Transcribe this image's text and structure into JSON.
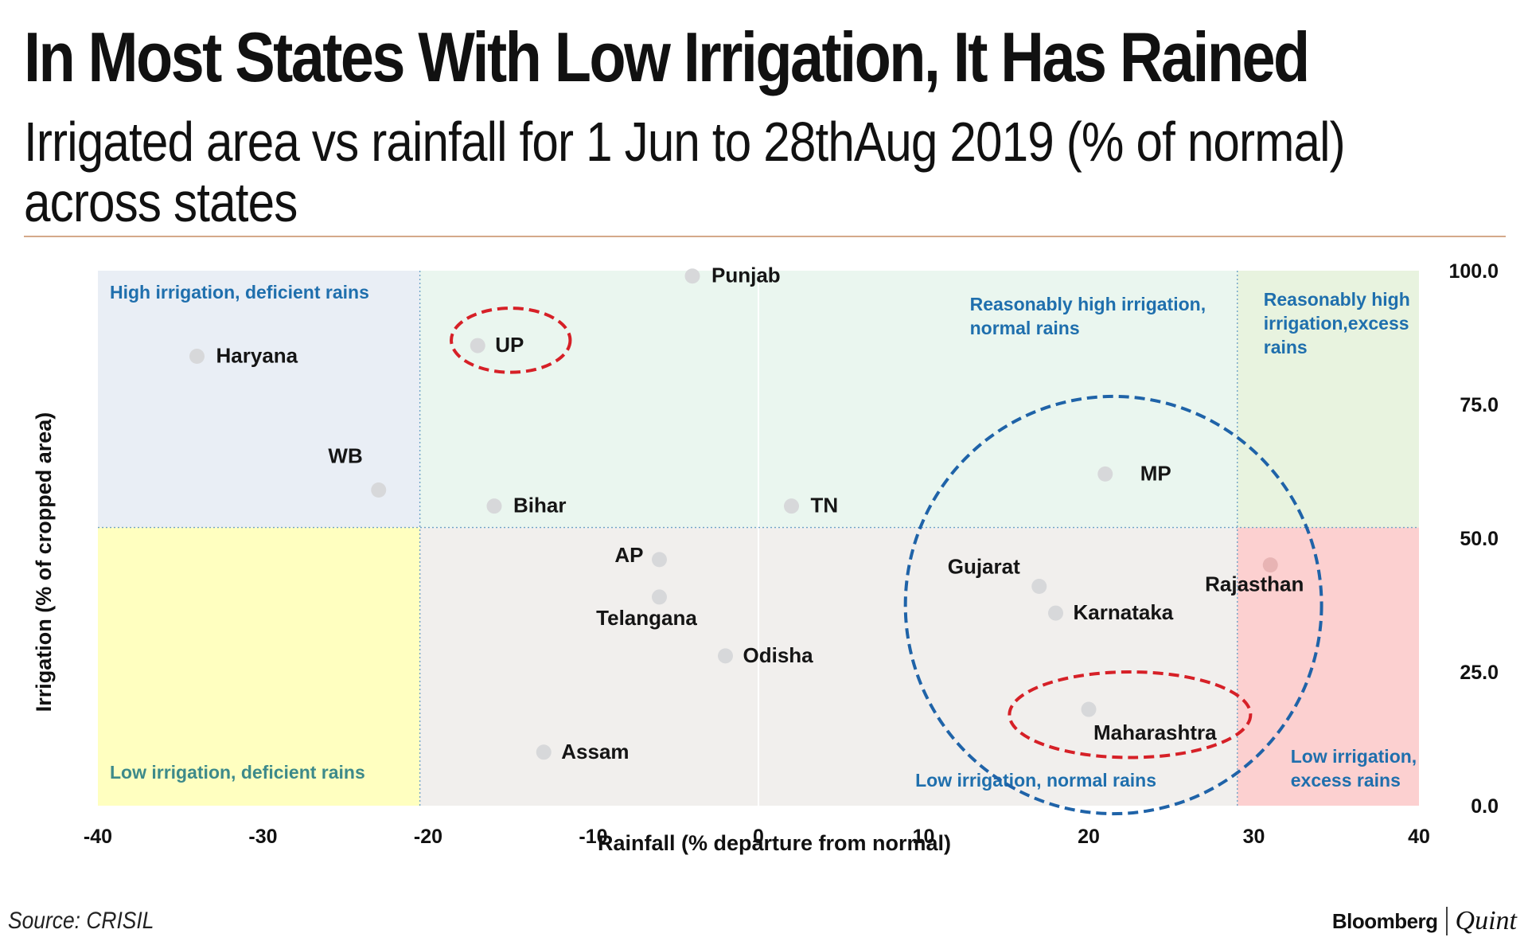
{
  "title": "In Most States With Low Irrigation, It Has Rained",
  "subtitle": "Irrigated area vs rainfall for 1 Jun to 28thAug 2019 (% of normal) across states",
  "source": "Source: CRISIL",
  "logo": {
    "primary": "Bloomberg",
    "secondary": "Quint"
  },
  "colors": {
    "high_irr_deficient": "#e9eef5",
    "high_irr_normal": "#eaf6ef",
    "high_irr_excess": "#e8f3df",
    "low_irr_deficient": "#ffffc0",
    "low_irr_normal": "#f1efed",
    "low_irr_excess": "#fcd0d0",
    "point": "#d7d8da",
    "quadrant_label": "#1f6fad",
    "quadrant_label_alt": "#3d8a8a",
    "highlight_red": "#d62027",
    "highlight_blue": "#1f63a8"
  },
  "chart_data": {
    "type": "scatter",
    "xlabel": "Rainfall (% departure from normal)",
    "ylabel": "Irrigation (% of cropped area)",
    "xlim": [
      -40,
      40
    ],
    "ylim": [
      0,
      100
    ],
    "xticks": [
      "-40",
      "-30",
      "-20",
      "-10",
      "0",
      "10",
      "20",
      "30",
      "40"
    ],
    "yticks": [
      "0.0",
      "25.0",
      "50.0",
      "75.0",
      "100.0"
    ],
    "thresholds": {
      "x_low": -20.5,
      "x_high": 29,
      "y": 52
    },
    "points": [
      {
        "label": "Punjab",
        "x": -4,
        "y": 99
      },
      {
        "label": "UP",
        "x": -17,
        "y": 86
      },
      {
        "label": "Haryana",
        "x": -34,
        "y": 84
      },
      {
        "label": "WB",
        "x": -23,
        "y": 59
      },
      {
        "label": "Bihar",
        "x": -16,
        "y": 56
      },
      {
        "label": "TN",
        "x": 2,
        "y": 56
      },
      {
        "label": "MP",
        "x": 21,
        "y": 62
      },
      {
        "label": "AP",
        "x": -6,
        "y": 46
      },
      {
        "label": "Telangana",
        "x": -6,
        "y": 39
      },
      {
        "label": "Odisha",
        "x": -2,
        "y": 28
      },
      {
        "label": "Assam",
        "x": -13,
        "y": 10
      },
      {
        "label": "Gujarat",
        "x": 17,
        "y": 41
      },
      {
        "label": "Karnataka",
        "x": 18,
        "y": 36
      },
      {
        "label": "Maharashtra",
        "x": 20,
        "y": 18
      },
      {
        "label": "Rajasthan",
        "x": 31,
        "y": 45
      }
    ],
    "quadrants": [
      {
        "key": "high_irr_deficient",
        "lines": [
          "High irrigation, deficient rains"
        ]
      },
      {
        "key": "high_irr_normal",
        "lines": [
          "Reasonably high irrigation,",
          "normal rains"
        ]
      },
      {
        "key": "high_irr_excess",
        "lines": [
          "Reasonably high",
          "irrigation,excess",
          "rains"
        ]
      },
      {
        "key": "low_irr_deficient",
        "lines": [
          "Low irrigation, deficient rains"
        ]
      },
      {
        "key": "low_irr_normal",
        "lines": [
          "Low irrigation, normal rains"
        ]
      },
      {
        "key": "low_irr_excess",
        "lines": [
          "Low irrigation,",
          "excess rains"
        ]
      }
    ],
    "highlights": [
      {
        "label": "UP",
        "color": "red",
        "cx": -15,
        "cy": 87,
        "rx": 3.6,
        "ry": 6
      },
      {
        "label": "Maharashtra",
        "color": "red",
        "cx": 22.5,
        "cy": 17,
        "rx": 7.3,
        "ry": 8
      },
      {
        "label": "Low irrigation, normal rains",
        "color": "blue",
        "cx": 21.5,
        "cy": 37.5,
        "rx": 12.6,
        "ry": 39
      }
    ]
  }
}
